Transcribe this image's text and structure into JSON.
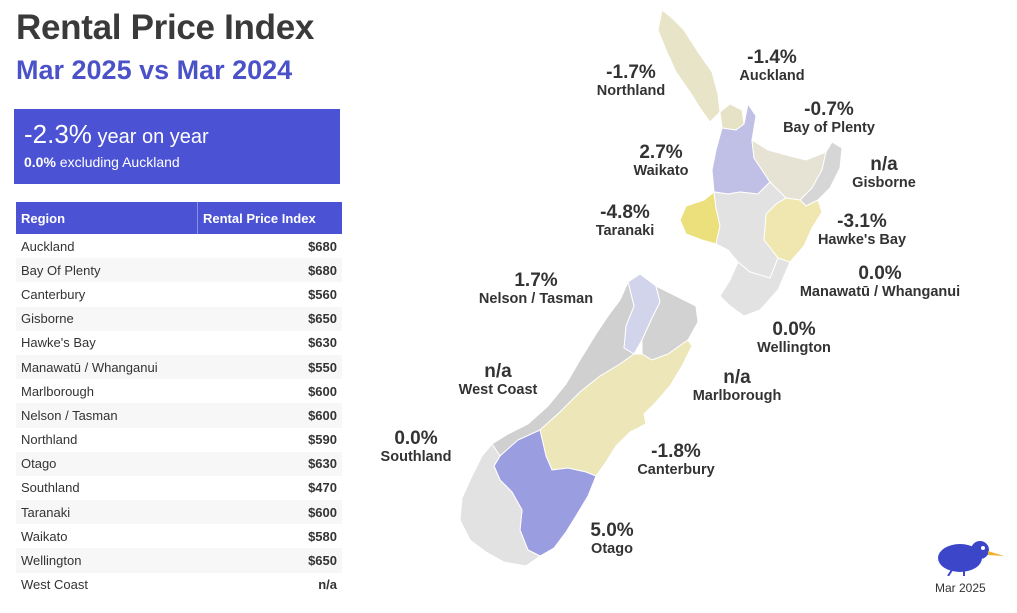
{
  "title": "Rental Price Index",
  "subtitle": "Mar 2025 vs Mar 2024",
  "kpi": {
    "headline": "-2.3%",
    "headline_label": " year on year",
    "excl_value": "0.0%",
    "excl_label": " excluding Auckland"
  },
  "table": {
    "headers": [
      "Region",
      "Rental Price Index"
    ],
    "rows": [
      {
        "region": "Auckland",
        "value": "$680"
      },
      {
        "region": "Bay Of Plenty",
        "value": "$680"
      },
      {
        "region": "Canterbury",
        "value": "$560"
      },
      {
        "region": "Gisborne",
        "value": "$650"
      },
      {
        "region": "Hawke's Bay",
        "value": "$630"
      },
      {
        "region": "Manawatū / Whanganui",
        "value": "$550"
      },
      {
        "region": "Marlborough",
        "value": "$600"
      },
      {
        "region": "Nelson / Tasman",
        "value": "$600"
      },
      {
        "region": "Northland",
        "value": "$590"
      },
      {
        "region": "Otago",
        "value": "$630"
      },
      {
        "region": "Southland",
        "value": "$470"
      },
      {
        "region": "Taranaki",
        "value": "$600"
      },
      {
        "region": "Waikato",
        "value": "$580"
      },
      {
        "region": "Wellington",
        "value": "$650"
      },
      {
        "region": "West Coast",
        "value": "n/a"
      }
    ]
  },
  "map": {
    "regions": [
      {
        "name": "Northland",
        "change": "-1.7%",
        "color": "#e8e4c8"
      },
      {
        "name": "Auckland",
        "change": "-1.4%",
        "color": "#e6e2c6"
      },
      {
        "name": "Bay of Plenty",
        "change": "-0.7%",
        "color": "#e6e3d4"
      },
      {
        "name": "Waikato",
        "change": "2.7%",
        "color": "#c0c0e6"
      },
      {
        "name": "Gisborne",
        "change": "n/a",
        "color": "#d6d6d6"
      },
      {
        "name": "Taranaki",
        "change": "-4.8%",
        "color": "#ece07c"
      },
      {
        "name": "Hawke's Bay",
        "change": "-3.1%",
        "color": "#f0e6b0"
      },
      {
        "name": "Manawatū / Whanganui",
        "change": "0.0%",
        "color": "#e2e2e2"
      },
      {
        "name": "Wellington",
        "change": "0.0%",
        "color": "#e2e2e2"
      },
      {
        "name": "Nelson / Tasman",
        "change": "1.7%",
        "color": "#d2d4ec"
      },
      {
        "name": "Marlborough",
        "change": "n/a",
        "color": "#d2d2d2"
      },
      {
        "name": "West Coast",
        "change": "n/a",
        "color": "#d0d0d0"
      },
      {
        "name": "Canterbury",
        "change": "-1.8%",
        "color": "#ece6b8"
      },
      {
        "name": "Southland",
        "change": "0.0%",
        "color": "#e2e2e2"
      },
      {
        "name": "Otago",
        "change": "5.0%",
        "color": "#9a9ee0"
      }
    ]
  },
  "footer": {
    "date": "Mar 2025"
  }
}
